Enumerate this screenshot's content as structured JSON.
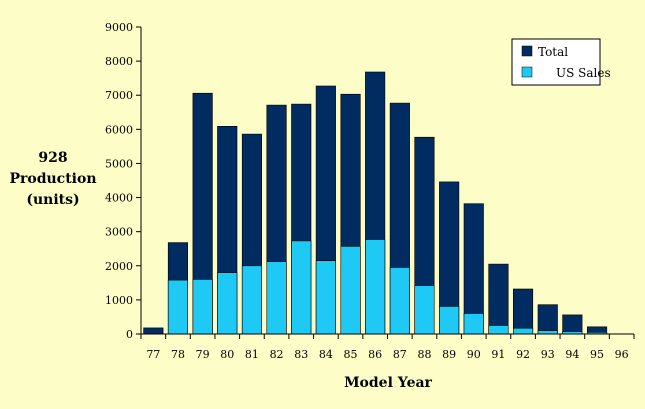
{
  "chart_data": {
    "type": "bar",
    "categories": [
      "77",
      "78",
      "79",
      "80",
      "81",
      "82",
      "83",
      "84",
      "85",
      "86",
      "87",
      "88",
      "89",
      "90",
      "91",
      "92",
      "93",
      "94",
      "95",
      "96"
    ],
    "series": [
      {
        "name": "Total",
        "values": [
          180,
          2680,
          7060,
          6090,
          5860,
          6710,
          6740,
          7270,
          7030,
          7680,
          6770,
          5770,
          4460,
          3820,
          2050,
          1320,
          860,
          560,
          210,
          0
        ],
        "color": "#002c61"
      },
      {
        "name": "US Sales",
        "values": [
          0,
          1580,
          1600,
          1800,
          2000,
          2120,
          2730,
          2150,
          2570,
          2770,
          1950,
          1420,
          810,
          600,
          250,
          170,
          100,
          70,
          50,
          0
        ],
        "color": "#1ecaf5"
      }
    ],
    "ylabel_lines": [
      "928",
      "Production",
      "(units)"
    ],
    "xlabel": "Model Year",
    "ylim": [
      0,
      9000
    ],
    "yticks": [
      0,
      1000,
      2000,
      3000,
      4000,
      5000,
      6000,
      7000,
      8000,
      9000
    ],
    "grid": false,
    "legend_position": "top-right",
    "background_color": "#fdfdc8"
  }
}
